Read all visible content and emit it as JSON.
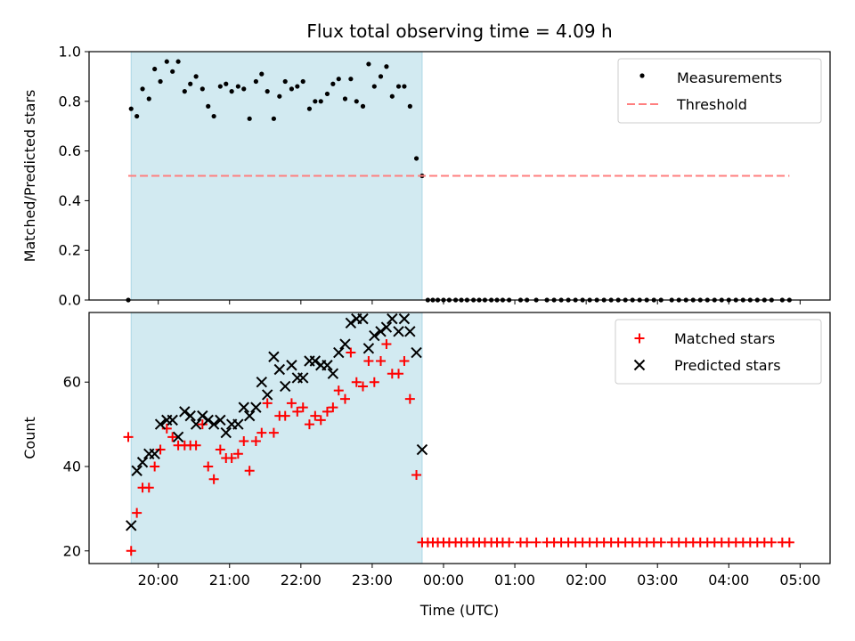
{
  "chart_data": {
    "type": "scatter",
    "title": "Flux total observing time = 4.09 h",
    "xlabel": "Time (UTC)",
    "x_ticks": [
      "20:00",
      "21:00",
      "22:00",
      "23:00",
      "00:00",
      "01:00",
      "02:00",
      "03:00",
      "04:00",
      "05:00"
    ],
    "x_range_hours": [
      19.03,
      29.42
    ],
    "shaded_region_hours": [
      19.62,
      23.7
    ],
    "colors": {
      "shade": "#add8e6",
      "threshold": "#ff7f7f",
      "matched": "#ff0000",
      "predicted": "#000000",
      "measurements": "#000000"
    },
    "top_panel": {
      "ylabel": "Matched/Predicted stars",
      "ylim": [
        0.0,
        1.0
      ],
      "y_ticks": [
        "0.0",
        "0.2",
        "0.4",
        "0.6",
        "0.8",
        "1.0"
      ],
      "legend_position": "upper right",
      "series": [
        {
          "name": "Measurements",
          "type": "scatter",
          "x": [
            19.58,
            19.62,
            19.7,
            19.78,
            19.87,
            19.95,
            20.03,
            20.12,
            20.2,
            20.28,
            20.37,
            20.45,
            20.53,
            20.62,
            20.7,
            20.78,
            20.87,
            20.95,
            21.03,
            21.12,
            21.2,
            21.28,
            21.37,
            21.45,
            21.53,
            21.62,
            21.7,
            21.78,
            21.87,
            21.95,
            22.03,
            22.12,
            22.2,
            22.28,
            22.37,
            22.45,
            22.53,
            22.62,
            22.7,
            22.78,
            22.87,
            22.95,
            23.03,
            23.12,
            23.2,
            23.28,
            23.37,
            23.45,
            23.53,
            23.62,
            23.7,
            23.78,
            23.85,
            23.92,
            24.0,
            24.08,
            24.17,
            24.25,
            24.33,
            24.42,
            24.5,
            24.58,
            24.67,
            24.75,
            24.83,
            24.92,
            25.08,
            25.17,
            25.3,
            25.45,
            25.55,
            25.65,
            25.75,
            25.85,
            25.95,
            26.05,
            26.15,
            26.25,
            26.35,
            26.45,
            26.55,
            26.65,
            26.75,
            26.85,
            26.95,
            27.05,
            27.2,
            27.3,
            27.4,
            27.5,
            27.6,
            27.7,
            27.8,
            27.9,
            28.0,
            28.1,
            28.2,
            28.3,
            28.4,
            28.5,
            28.6,
            28.75,
            28.85
          ],
          "values": [
            0.0,
            0.77,
            0.74,
            0.85,
            0.81,
            0.93,
            0.88,
            0.96,
            0.92,
            0.96,
            0.84,
            0.87,
            0.9,
            0.85,
            0.78,
            0.74,
            0.86,
            0.87,
            0.84,
            0.86,
            0.85,
            0.73,
            0.88,
            0.91,
            0.84,
            0.73,
            0.82,
            0.88,
            0.85,
            0.86,
            0.88,
            0.77,
            0.8,
            0.8,
            0.83,
            0.87,
            0.89,
            0.81,
            0.89,
            0.8,
            0.78,
            0.95,
            0.86,
            0.9,
            0.94,
            0.82,
            0.86,
            0.86,
            0.78,
            0.57,
            0.5,
            0.0,
            0.0,
            0.0,
            0.0,
            0.0,
            0.0,
            0.0,
            0.0,
            0.0,
            0.0,
            0.0,
            0.0,
            0.0,
            0.0,
            0.0,
            0.0,
            0.0,
            0.0,
            0.0,
            0.0,
            0.0,
            0.0,
            0.0,
            0.0,
            0.0,
            0.0,
            0.0,
            0.0,
            0.0,
            0.0,
            0.0,
            0.0,
            0.0,
            0.0,
            0.0,
            0.0,
            0.0,
            0.0,
            0.0,
            0.0,
            0.0,
            0.0,
            0.0,
            0.0,
            0.0,
            0.0,
            0.0,
            0.0,
            0.0,
            0.0,
            0.0,
            0.0
          ]
        },
        {
          "name": "Threshold",
          "type": "line",
          "x": [
            19.58,
            28.85
          ],
          "values": [
            0.5,
            0.5
          ]
        }
      ]
    },
    "bottom_panel": {
      "ylabel": "Count",
      "ylim": [
        17,
        76.5
      ],
      "y_ticks": [
        "20",
        "40",
        "60"
      ],
      "legend_position": "upper right",
      "series": [
        {
          "name": "Matched stars",
          "type": "scatter",
          "marker": "+",
          "x": [
            19.58,
            19.62,
            19.7,
            19.78,
            19.87,
            19.95,
            20.03,
            20.12,
            20.2,
            20.28,
            20.37,
            20.45,
            20.53,
            20.62,
            20.7,
            20.78,
            20.87,
            20.95,
            21.03,
            21.12,
            21.2,
            21.28,
            21.37,
            21.45,
            21.53,
            21.62,
            21.7,
            21.78,
            21.87,
            21.95,
            22.03,
            22.12,
            22.2,
            22.28,
            22.37,
            22.45,
            22.53,
            22.62,
            22.7,
            22.78,
            22.87,
            22.95,
            23.03,
            23.12,
            23.2,
            23.28,
            23.37,
            23.45,
            23.53,
            23.62,
            23.7,
            23.78,
            23.85,
            23.92,
            24.0,
            24.08,
            24.17,
            24.25,
            24.33,
            24.42,
            24.5,
            24.58,
            24.67,
            24.75,
            24.83,
            24.92,
            25.08,
            25.17,
            25.3,
            25.45,
            25.55,
            25.65,
            25.75,
            25.85,
            25.95,
            26.05,
            26.15,
            26.25,
            26.35,
            26.45,
            26.55,
            26.65,
            26.75,
            26.85,
            26.95,
            27.05,
            27.2,
            27.3,
            27.4,
            27.5,
            27.6,
            27.7,
            27.8,
            27.9,
            28.0,
            28.1,
            28.2,
            28.3,
            28.4,
            28.5,
            28.6,
            28.75,
            28.85
          ],
          "values": [
            47,
            20,
            29,
            35,
            35,
            40,
            44,
            49,
            47,
            45,
            45,
            45,
            45,
            50,
            40,
            37,
            44,
            42,
            42,
            43,
            46,
            39,
            46,
            48,
            55,
            48,
            52,
            52,
            55,
            53,
            54,
            50,
            52,
            51,
            53,
            54,
            58,
            56,
            67,
            60,
            59,
            65,
            60,
            65,
            69,
            62,
            62,
            65,
            56,
            38,
            22,
            22,
            22,
            22,
            22,
            22,
            22,
            22,
            22,
            22,
            22,
            22,
            22,
            22,
            22,
            22,
            22,
            22,
            22,
            22,
            22,
            22,
            22,
            22,
            22,
            22,
            22,
            22,
            22,
            22,
            22,
            22,
            22,
            22,
            22,
            22,
            22,
            22,
            22,
            22,
            22,
            22,
            22,
            22,
            22,
            22,
            22,
            22,
            22,
            22,
            22,
            22,
            22
          ]
        },
        {
          "name": "Predicted stars",
          "type": "scatter",
          "marker": "x",
          "x": [
            19.62,
            19.7,
            19.78,
            19.87,
            19.95,
            20.03,
            20.12,
            20.2,
            20.28,
            20.37,
            20.45,
            20.53,
            20.62,
            20.7,
            20.78,
            20.87,
            20.95,
            21.03,
            21.12,
            21.2,
            21.28,
            21.37,
            21.45,
            21.53,
            21.62,
            21.7,
            21.78,
            21.87,
            21.95,
            22.03,
            22.12,
            22.2,
            22.28,
            22.37,
            22.45,
            22.53,
            22.62,
            22.7,
            22.78,
            22.87,
            22.95,
            23.03,
            23.12,
            23.2,
            23.28,
            23.37,
            23.45,
            23.53,
            23.62,
            23.7
          ],
          "values": [
            26,
            39,
            41,
            43,
            43,
            50,
            51,
            51,
            47,
            53,
            52,
            50,
            52,
            51,
            50,
            51,
            48,
            50,
            50,
            54,
            52,
            54,
            60,
            57,
            66,
            63,
            59,
            64,
            61,
            61,
            65,
            65,
            64,
            64,
            62,
            67,
            69,
            74,
            75,
            75,
            68,
            71,
            72,
            73,
            75,
            72,
            75,
            72,
            67,
            44
          ]
        }
      ]
    }
  }
}
